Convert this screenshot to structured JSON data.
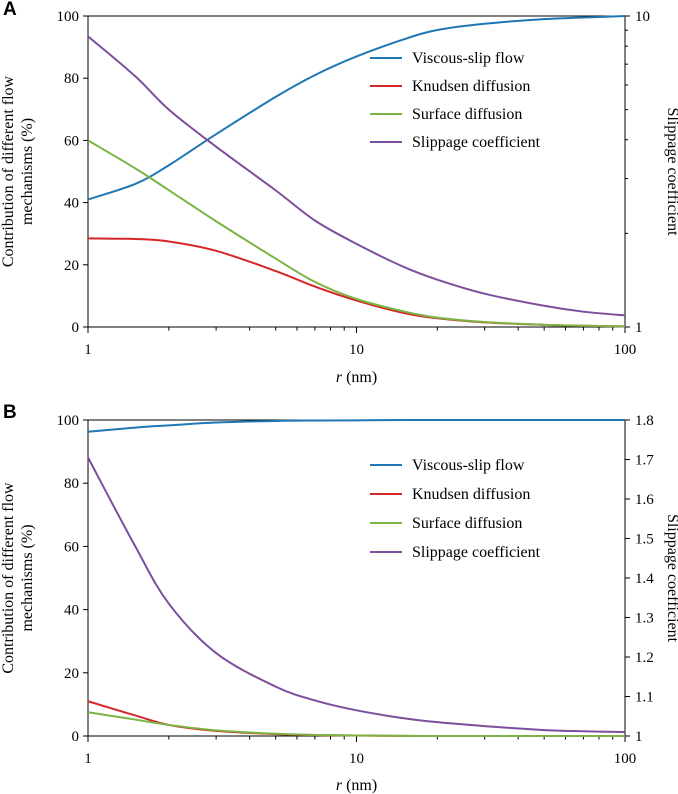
{
  "chart_data": [
    {
      "type": "line",
      "panel_label": "A",
      "xscale": "log",
      "xlim": [
        1,
        100
      ],
      "xticks": [
        1,
        10,
        100
      ],
      "xtick_labels": [
        "1",
        "10",
        "100"
      ],
      "xlabel_italic": "r",
      "xlabel_unit": " (nm)",
      "ylabel_lines": [
        "Contribution of different flow",
        "mechanisms (%)"
      ],
      "ylim": [
        0,
        100
      ],
      "yticks": [
        0,
        20,
        40,
        60,
        80,
        100
      ],
      "ytick_labels": [
        "0",
        "20",
        "40",
        "60",
        "80",
        "100"
      ],
      "y2label": "Slippage coefficient",
      "y2scale": "log",
      "y2lim": [
        1,
        10
      ],
      "y2ticks": [
        1,
        10
      ],
      "y2tick_labels": [
        "1",
        "10"
      ],
      "x": [
        1,
        1.5,
        2,
        3,
        5,
        7,
        10,
        15,
        20,
        30,
        50,
        70,
        100
      ],
      "series": [
        {
          "name": "Viscous-slip flow",
          "color": "#1f77b4",
          "axis": "left",
          "values": [
            41,
            46,
            52,
            62,
            74,
            81,
            87,
            92.5,
            95.5,
            97.5,
            99,
            99.5,
            100
          ]
        },
        {
          "name": "Knudsen diffusion",
          "color": "#d62728",
          "axis": "left",
          "values": [
            28.5,
            28.3,
            27.5,
            24.5,
            18,
            13,
            8.5,
            4.5,
            2.8,
            1.5,
            0.7,
            0.4,
            0.2
          ]
        },
        {
          "name": "Surface diffusion",
          "color": "#7cb342",
          "axis": "left",
          "values": [
            60,
            51,
            44,
            34,
            22,
            14.5,
            9,
            5,
            3,
            1.6,
            0.7,
            0.4,
            0.2
          ]
        },
        {
          "name": "Slippage coefficient",
          "color": "#7b4f9d",
          "axis": "right",
          "values": [
            8.6,
            6.4,
            5.0,
            3.8,
            2.75,
            2.2,
            1.85,
            1.56,
            1.42,
            1.28,
            1.17,
            1.12,
            1.09
          ]
        }
      ]
    },
    {
      "type": "line",
      "panel_label": "B",
      "xscale": "log",
      "xlim": [
        1,
        100
      ],
      "xticks": [
        1,
        10,
        100
      ],
      "xtick_labels": [
        "1",
        "10",
        "100"
      ],
      "xlabel_italic": "r",
      "xlabel_unit": " (nm)",
      "ylabel_lines": [
        "Contribution of different flow",
        "mechanisms (%)"
      ],
      "ylim": [
        0,
        100
      ],
      "yticks": [
        0,
        20,
        40,
        60,
        80,
        100
      ],
      "ytick_labels": [
        "0",
        "20",
        "40",
        "60",
        "80",
        "100"
      ],
      "y2label": "Slippage coefficient",
      "y2scale": "linear",
      "y2lim": [
        1,
        1.8
      ],
      "y2ticks": [
        1,
        1.1,
        1.2,
        1.3,
        1.4,
        1.5,
        1.6,
        1.7,
        1.8
      ],
      "y2tick_labels": [
        "1",
        "1.1",
        "1.2",
        "1.3",
        "1.4",
        "1.5",
        "1.6",
        "1.7",
        "1.8"
      ],
      "x": [
        1,
        1.5,
        2,
        3,
        5,
        7,
        10,
        15,
        20,
        30,
        50,
        70,
        100
      ],
      "series": [
        {
          "name": "Viscous-slip flow",
          "color": "#1f77b4",
          "axis": "left",
          "values": [
            96.3,
            97.6,
            98.3,
            99.2,
            99.7,
            99.85,
            99.9,
            100,
            100,
            100,
            100,
            100,
            100
          ]
        },
        {
          "name": "Knudsen diffusion",
          "color": "#d62728",
          "axis": "left",
          "values": [
            11,
            6.5,
            3.5,
            1.6,
            0.6,
            0.3,
            0.15,
            0.05,
            0,
            0,
            0,
            0,
            0
          ]
        },
        {
          "name": "Surface diffusion",
          "color": "#7cb342",
          "axis": "left",
          "values": [
            7.5,
            5.2,
            3.5,
            1.8,
            0.7,
            0.35,
            0.15,
            0.05,
            0,
            0,
            0,
            0,
            0
          ]
        },
        {
          "name": "Slippage coefficient",
          "color": "#7b4f9d",
          "axis": "right",
          "values": [
            1.705,
            1.48,
            1.335,
            1.21,
            1.125,
            1.09,
            1.065,
            1.045,
            1.035,
            1.025,
            1.015,
            1.012,
            1.01
          ]
        }
      ]
    }
  ]
}
